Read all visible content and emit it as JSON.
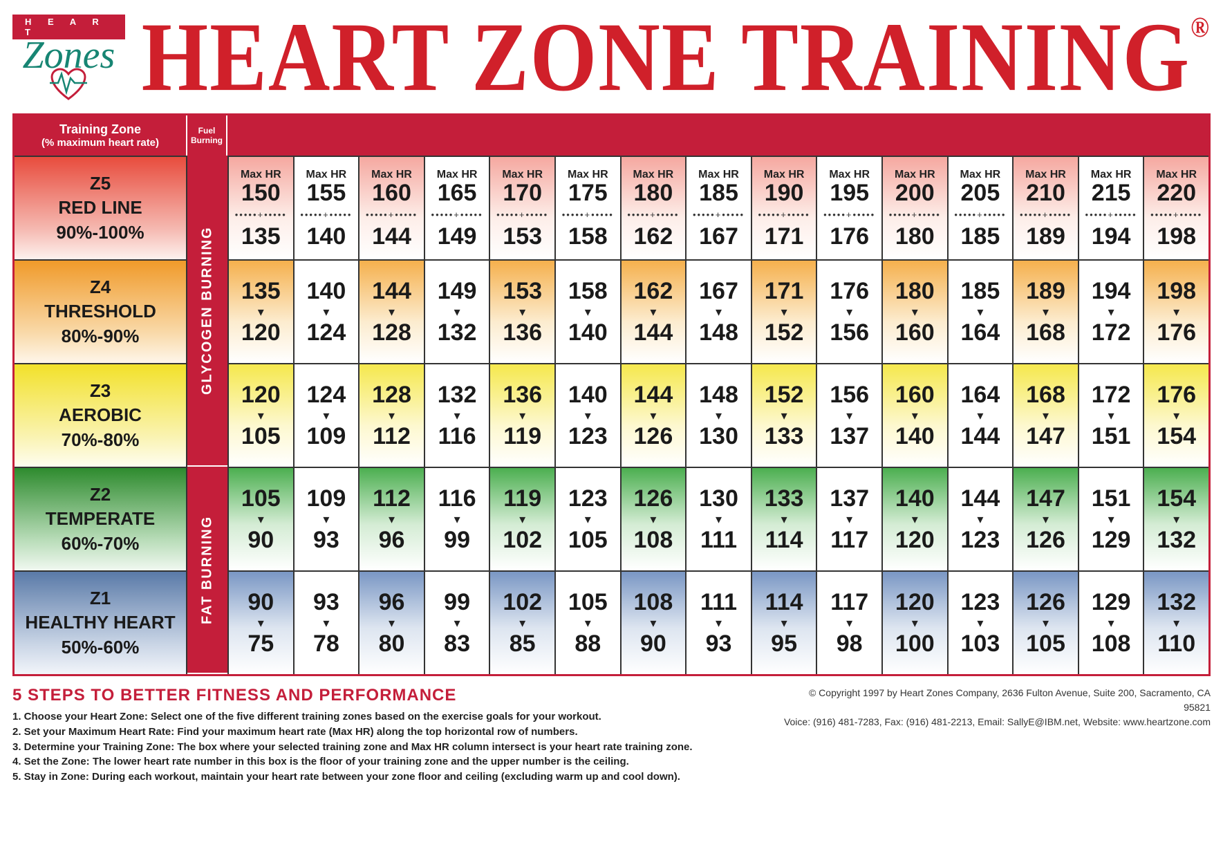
{
  "logo": {
    "bar_text": "H E A R T",
    "script_text": "Zones"
  },
  "title": "HEART ZONE TRAINING",
  "registered": "®",
  "header": {
    "training_zone_label": "Training Zone",
    "training_zone_sub": "(% maximum heart rate)",
    "fuel_burning_label": "Fuel Burning"
  },
  "max_hr_label": "Max HR",
  "max_hr_values": [
    150,
    155,
    160,
    165,
    170,
    175,
    180,
    185,
    190,
    195,
    200,
    205,
    210,
    215,
    220
  ],
  "zones": [
    {
      "key": "z5",
      "code": "Z5",
      "name": "RED LINE",
      "range": "90%-100%",
      "label_bg": "linear-gradient(#e84c3d,#f5b8b0 70%,#fdf1ee)",
      "tint_class": "alt-tint-z5",
      "upper": [
        150,
        155,
        160,
        165,
        170,
        175,
        180,
        185,
        190,
        195,
        200,
        205,
        210,
        215,
        220
      ],
      "lower": [
        135,
        140,
        144,
        149,
        153,
        158,
        162,
        167,
        171,
        176,
        180,
        185,
        189,
        194,
        198
      ],
      "separator": "dots"
    },
    {
      "key": "z4",
      "code": "Z4",
      "name": "THRESHOLD",
      "range": "80%-90%",
      "label_bg": "linear-gradient(#f09a2a,#f9d9a8 70%,#fef6ea)",
      "tint_class": "alt-tint-z4",
      "upper": [
        135,
        140,
        144,
        149,
        153,
        158,
        162,
        167,
        171,
        176,
        180,
        185,
        189,
        194,
        198
      ],
      "lower": [
        120,
        124,
        128,
        132,
        136,
        140,
        144,
        148,
        152,
        156,
        160,
        164,
        168,
        172,
        176
      ],
      "separator": "arrow"
    },
    {
      "key": "z3",
      "code": "Z3",
      "name": "AEROBIC",
      "range": "70%-80%",
      "label_bg": "linear-gradient(#f2e12a,#faf3b0 70%,#fefdf0)",
      "tint_class": "alt-tint-z3",
      "upper": [
        120,
        124,
        128,
        132,
        136,
        140,
        144,
        148,
        152,
        156,
        160,
        164,
        168,
        172,
        176
      ],
      "lower": [
        105,
        109,
        112,
        116,
        119,
        123,
        126,
        130,
        133,
        137,
        140,
        144,
        147,
        151,
        154
      ],
      "separator": "arrow"
    },
    {
      "key": "z2",
      "code": "Z2",
      "name": "TEMPERATE",
      "range": "60%-70%",
      "label_bg": "linear-gradient(#2e8b2e,#b8dcb8 70%,#f0f8f0)",
      "tint_class": "alt-tint-z2",
      "upper": [
        105,
        109,
        112,
        116,
        119,
        123,
        126,
        130,
        133,
        137,
        140,
        144,
        147,
        151,
        154
      ],
      "lower": [
        90,
        93,
        96,
        99,
        102,
        105,
        108,
        111,
        114,
        117,
        120,
        123,
        126,
        129,
        132
      ],
      "separator": "arrow"
    },
    {
      "key": "z1",
      "code": "Z1",
      "name": "HEALTHY HEART",
      "range": "50%-60%",
      "label_bg": "linear-gradient(#5a7aa8,#c8d4e5 70%,#f2f5fa)",
      "tint_class": "alt-tint-z1",
      "upper": [
        90,
        93,
        96,
        99,
        102,
        105,
        108,
        111,
        114,
        117,
        120,
        123,
        126,
        129,
        132
      ],
      "lower": [
        75,
        78,
        80,
        83,
        85,
        88,
        90,
        93,
        95,
        98,
        100,
        103,
        105,
        108,
        110
      ],
      "separator": "arrow"
    }
  ],
  "fuel_labels": {
    "glycogen": "GLYCOGEN BURNING",
    "fat": "FAT BURNING"
  },
  "steps_title": "5 STEPS TO BETTER FITNESS AND PERFORMANCE",
  "steps": [
    "1. Choose your Heart Zone: Select one of the five different training zones based on the exercise goals for your workout.",
    "2. Set your Maximum Heart Rate: Find your maximum heart rate (Max HR) along the top horizontal row of numbers.",
    "3. Determine your Training Zone: The box where your selected training zone and Max HR column intersect is your heart rate training zone.",
    "4. Set the Zone: The lower heart rate number in this box is the floor of your training zone and the upper number is the ceiling.",
    "5. Stay in Zone: During each workout, maintain your heart rate between your zone floor and ceiling (excluding warm up and cool down)."
  ],
  "copyright_line1": "© Copyright 1997 by Heart Zones Company, 2636 Fulton Avenue, Suite 200, Sacramento, CA 95821",
  "copyright_line2": "Voice: (916) 481-7283, Fax: (916) 481-2213, Email: SallyE@IBM.net, Website: www.heartzone.com",
  "colors": {
    "brand_red": "#c41e3a",
    "title_red": "#d0202a",
    "teal": "#178573",
    "border": "#333333",
    "white": "#ffffff"
  }
}
